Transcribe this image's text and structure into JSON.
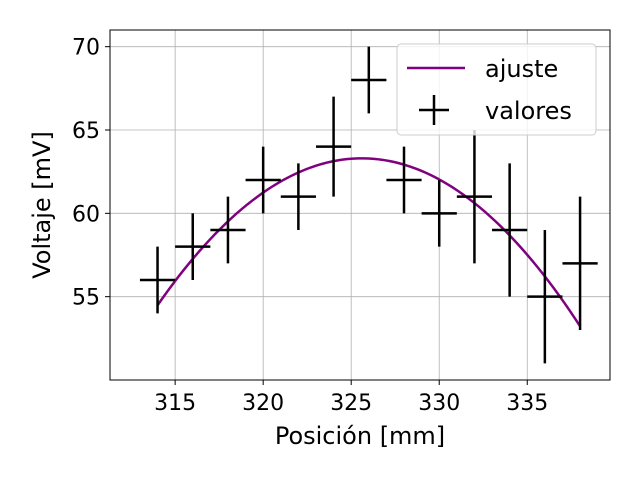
{
  "chart_data": {
    "type": "scatter",
    "xlabel": "Posición [mm]",
    "ylabel": "Voltaje [mV]",
    "xlim": [
      311.3,
      339.7
    ],
    "ylim": [
      50.0,
      71.0
    ],
    "xticks": [
      315,
      320,
      325,
      330,
      335
    ],
    "yticks": [
      55,
      60,
      65,
      70
    ],
    "grid": true,
    "legend_position": "top-right",
    "series": [
      {
        "name": "valores",
        "type": "errorbar",
        "color": "#000000",
        "x": [
          314,
          316,
          318,
          320,
          322,
          324,
          326,
          328,
          330,
          332,
          334,
          336,
          338
        ],
        "y": [
          56,
          58,
          59,
          62,
          61,
          64,
          68,
          62,
          60,
          61,
          59,
          55,
          57
        ],
        "yerr": [
          2,
          2,
          2,
          2,
          2,
          3,
          2,
          2,
          2,
          4,
          4,
          4,
          4
        ],
        "xerr": [
          1,
          1,
          1,
          1,
          1,
          1,
          1,
          1,
          1,
          1,
          1,
          1,
          1
        ]
      },
      {
        "name": "ajuste",
        "type": "line",
        "color": "#800080",
        "model": "quadratic",
        "vertex_x": 325.6,
        "vertex_y": 63.3,
        "curvature": -0.0655,
        "x_range": [
          314,
          338
        ]
      }
    ]
  }
}
